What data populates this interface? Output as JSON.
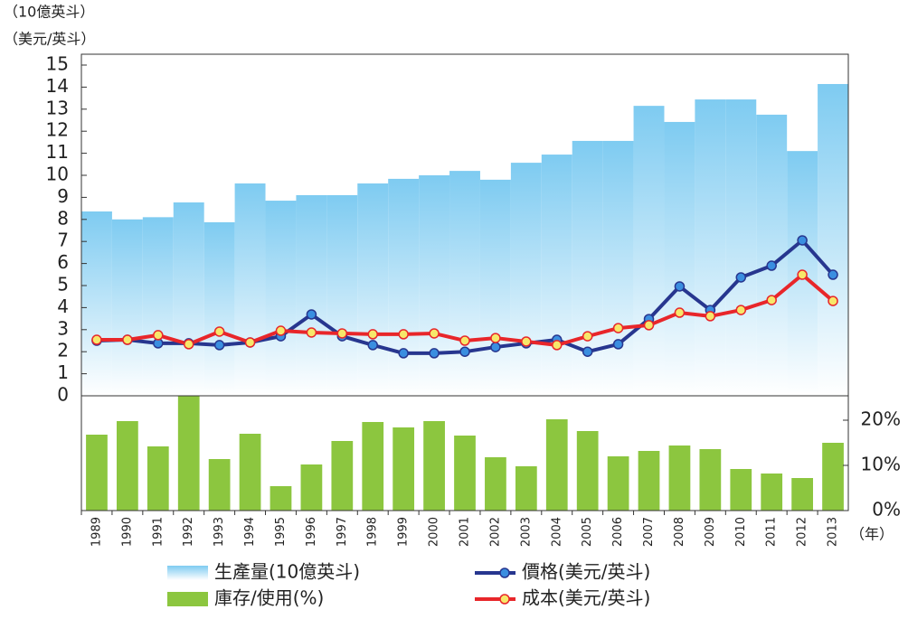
{
  "chart_data": {
    "type": "combo",
    "y_label": "（10億英斗）",
    "y_label_2": "（美元/英斗）",
    "x_label": "（年）",
    "categories": [
      "1989",
      "1990",
      "1991",
      "1992",
      "1993",
      "1994",
      "1995",
      "1996",
      "1997",
      "1998",
      "1999",
      "2000",
      "2001",
      "2002",
      "2003",
      "2004",
      "2005",
      "2006",
      "2007",
      "2008",
      "2009",
      "2010",
      "2011",
      "2012",
      "2013"
    ],
    "series": [
      {
        "name": "生產量(10億英斗)",
        "kind": "bar",
        "color": "#7ecbf1",
        "values": [
          8.36,
          8.0,
          8.1,
          8.77,
          7.87,
          9.63,
          8.85,
          9.1,
          9.1,
          9.63,
          9.84,
          10.0,
          10.2,
          9.8,
          10.57,
          10.94,
          11.56,
          11.56,
          13.15,
          12.42,
          13.44,
          13.44,
          12.75,
          11.1,
          14.14
        ]
      },
      {
        "name": "價格(美元/英斗)",
        "kind": "line",
        "color": "#27368f",
        "marker_color": "#3a8ee0",
        "values": [
          2.5,
          2.54,
          2.38,
          2.38,
          2.3,
          2.42,
          2.7,
          3.69,
          2.7,
          2.3,
          1.93,
          1.93,
          2.0,
          2.21,
          2.38,
          2.54,
          2.0,
          2.34,
          3.48,
          4.96,
          3.89,
          5.37,
          5.9,
          7.05,
          5.49
        ]
      },
      {
        "name": "成本(美元/英斗)",
        "kind": "line",
        "color": "#e8262a",
        "marker_color": "#f7e76a",
        "values": [
          2.54,
          2.54,
          2.75,
          2.34,
          2.91,
          2.42,
          2.95,
          2.87,
          2.83,
          2.79,
          2.79,
          2.83,
          2.5,
          2.62,
          2.46,
          2.3,
          2.7,
          3.07,
          3.2,
          3.77,
          3.61,
          3.89,
          4.34,
          5.49,
          4.3
        ]
      },
      {
        "name": "庫存/使用(%)",
        "kind": "bar",
        "axis": "y2",
        "color": "#8cc63f",
        "values": [
          16.8,
          19.8,
          14.2,
          25.4,
          11.4,
          17.0,
          5.4,
          10.2,
          15.4,
          19.6,
          18.4,
          19.8,
          16.6,
          11.8,
          9.8,
          20.2,
          17.6,
          12.0,
          13.2,
          14.4,
          13.6,
          9.2,
          8.2,
          7.2,
          15.0
        ]
      }
    ],
    "ylim": [
      0,
      15
    ],
    "yticks": [
      0,
      1,
      2,
      3,
      4,
      5,
      6,
      7,
      8,
      9,
      10,
      11,
      12,
      13,
      14,
      15
    ],
    "y2lim": [
      0,
      25.4
    ],
    "y2ticks": [
      {
        "value": 0,
        "label": "0%"
      },
      {
        "value": 10,
        "label": "10%"
      },
      {
        "value": 20,
        "label": "20%"
      }
    ],
    "grid": false
  }
}
